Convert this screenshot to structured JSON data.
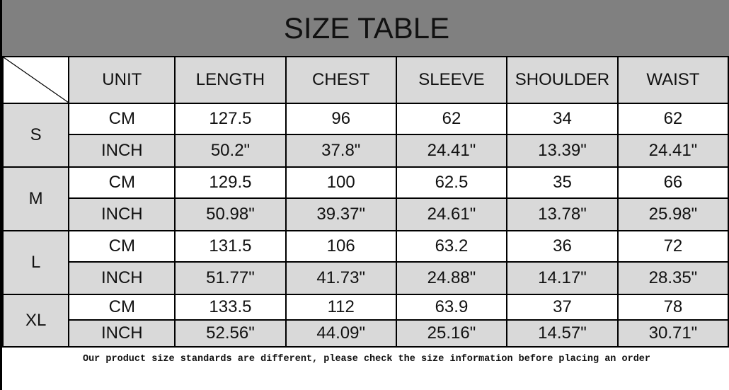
{
  "title": "SIZE TABLE",
  "columns": [
    "UNIT",
    "LENGTH",
    "CHEST",
    "SLEEVE",
    "SHOULDER",
    "WAIST"
  ],
  "sizes": [
    {
      "size": "S",
      "cm": [
        "CM",
        "127.5",
        "96",
        "62",
        "34",
        "62"
      ],
      "inch": [
        "INCH",
        "50.2\"",
        "37.8\"",
        "24.41\"",
        "13.39\"",
        "24.41\""
      ]
    },
    {
      "size": "M",
      "cm": [
        "CM",
        "129.5",
        "100",
        "62.5",
        "35",
        "66"
      ],
      "inch": [
        "INCH",
        "50.98\"",
        "39.37\"",
        "24.61\"",
        "13.78\"",
        "25.98\""
      ]
    },
    {
      "size": "L",
      "cm": [
        "CM",
        "131.5",
        "106",
        "63.2",
        "36",
        "72"
      ],
      "inch": [
        "INCH",
        "51.77\"",
        "41.73\"",
        "24.88\"",
        "14.17\"",
        "28.35\""
      ]
    },
    {
      "size": "XL",
      "cm": [
        "CM",
        "133.5",
        "112",
        "63.9",
        "37",
        "78"
      ],
      "inch": [
        "INCH",
        "52.56\"",
        "44.09\"",
        "25.16\"",
        "14.57\"",
        "30.71\""
      ]
    }
  ],
  "note": "Our product size standards are different, please check the size information before placing an order",
  "colors": {
    "title_bar": "#808080",
    "header_fill": "#d9d9d9",
    "inch_row_fill": "#d9d9d9"
  }
}
